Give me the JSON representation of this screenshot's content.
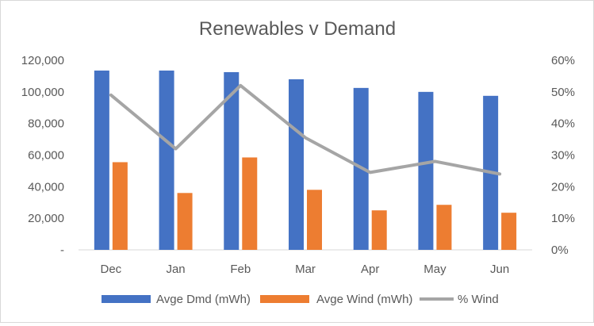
{
  "chart_data": {
    "type": "bar",
    "title": "Renewables v Demand",
    "categories": [
      "Dec",
      "Jan",
      "Feb",
      "Mar",
      "Apr",
      "May",
      "Jun"
    ],
    "series": [
      {
        "name": "Avge Dmd (mWh)",
        "type": "bar",
        "axis": "left",
        "color": "#4472C4",
        "values": [
          113500,
          113500,
          112500,
          108000,
          102500,
          100000,
          97500
        ]
      },
      {
        "name": "Avge Wind (mWh)",
        "type": "bar",
        "axis": "left",
        "color": "#ED7D31",
        "values": [
          55500,
          36000,
          58500,
          38000,
          25000,
          28500,
          23500
        ]
      },
      {
        "name": "% Wind",
        "type": "line",
        "axis": "right",
        "color": "#A5A5A5",
        "values": [
          0.49,
          0.32,
          0.52,
          0.355,
          0.245,
          0.28,
          0.24
        ]
      }
    ],
    "y_left": {
      "min": 0,
      "max": 120000,
      "step": 20000,
      "tick_labels": [
        "-",
        "20,000",
        "40,000",
        "60,000",
        "80,000",
        "100,000",
        "120,000"
      ]
    },
    "y_right": {
      "min": 0,
      "max": 0.6,
      "step": 0.1,
      "tick_labels": [
        "0%",
        "10%",
        "20%",
        "30%",
        "40%",
        "50%",
        "60%"
      ]
    },
    "grid": false,
    "legend_position": "bottom"
  }
}
